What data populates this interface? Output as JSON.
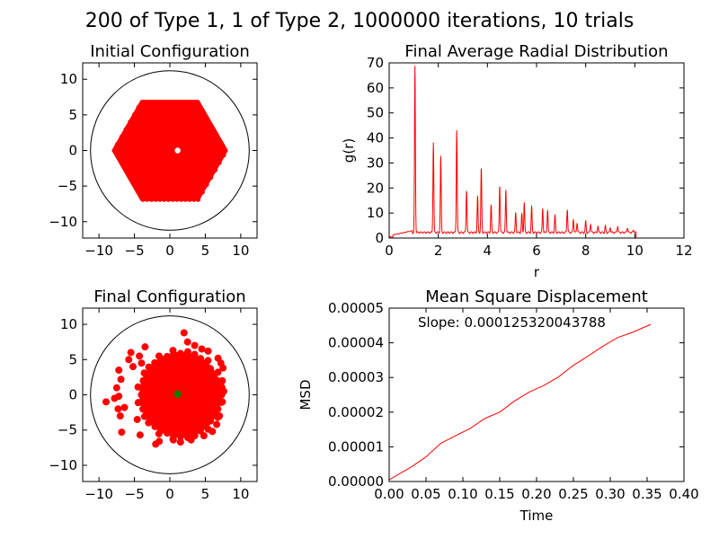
{
  "figure_title": "200 of Type 1, 1 of Type 2, 1000000 iterations, 10 trials",
  "colors": {
    "type1": "#ff0000",
    "type2": "#008000",
    "boundary": "#000000",
    "line": "#ff0000"
  },
  "chart_data": [
    {
      "id": "initial",
      "type": "scatter",
      "title": "Initial Configuration",
      "xlabel": "",
      "ylabel": "",
      "xlim": [
        -12.3,
        12.3
      ],
      "ylim": [
        -12.3,
        12.3
      ],
      "xticks": [
        -10,
        -5,
        0,
        5,
        10
      ],
      "yticks": [
        -10,
        -5,
        0,
        5,
        10
      ],
      "boundary_radius": 11.2,
      "series": [
        {
          "role": "type1",
          "color": "#ff0000",
          "shape": "hexagonal lattice",
          "count": 200,
          "hexagon_circumradius": 8.0
        },
        {
          "role": "type2",
          "color": "#ffffff",
          "points": [
            [
              1.1,
              0.0
            ]
          ]
        }
      ]
    },
    {
      "id": "rdf",
      "type": "line",
      "title": "Final Average Radial Distribution",
      "xlabel": "r",
      "ylabel": "g(r)",
      "xlim": [
        0,
        12
      ],
      "ylim": [
        0,
        70
      ],
      "xticks": [
        0,
        2,
        4,
        6,
        8,
        10,
        12
      ],
      "yticks": [
        0,
        10,
        20,
        30,
        40,
        50,
        60,
        70
      ],
      "color": "#ff0000",
      "peaks": [
        {
          "r": 1.05,
          "g": 68
        },
        {
          "r": 1.8,
          "g": 37.5
        },
        {
          "r": 2.1,
          "g": 32
        },
        {
          "r": 2.75,
          "g": 42.5
        },
        {
          "r": 3.15,
          "g": 18.5
        },
        {
          "r": 3.6,
          "g": 16
        },
        {
          "r": 3.75,
          "g": 27.5
        },
        {
          "r": 4.15,
          "g": 12.5
        },
        {
          "r": 4.5,
          "g": 20.5
        },
        {
          "r": 4.75,
          "g": 18.5
        },
        {
          "r": 5.15,
          "g": 9.5
        },
        {
          "r": 5.4,
          "g": 9
        },
        {
          "r": 5.5,
          "g": 13.5
        },
        {
          "r": 5.8,
          "g": 12
        },
        {
          "r": 6.25,
          "g": 11
        },
        {
          "r": 6.45,
          "g": 10.5
        },
        {
          "r": 6.75,
          "g": 8.5
        },
        {
          "r": 7.25,
          "g": 11
        },
        {
          "r": 7.5,
          "g": 7
        },
        {
          "r": 7.65,
          "g": 5.5
        },
        {
          "r": 8.0,
          "g": 6
        },
        {
          "r": 8.2,
          "g": 5
        },
        {
          "r": 8.5,
          "g": 4
        },
        {
          "r": 8.8,
          "g": 4
        },
        {
          "r": 9.0,
          "g": 3.5
        },
        {
          "r": 9.3,
          "g": 4
        },
        {
          "r": 9.7,
          "g": 3.5
        },
        {
          "r": 9.95,
          "g": 2.5
        }
      ],
      "r_end": 10.05
    },
    {
      "id": "final",
      "type": "scatter",
      "title": "Final Configuration",
      "xlabel": "",
      "ylabel": "",
      "xlim": [
        -12.3,
        12.3
      ],
      "ylim": [
        -12.3,
        12.3
      ],
      "xticks": [
        -10,
        -5,
        0,
        5,
        10
      ],
      "yticks": [
        -10,
        -5,
        0,
        5,
        10
      ],
      "boundary_radius": 11.2,
      "series": [
        {
          "role": "type1",
          "color": "#ff0000",
          "count": 200,
          "core_center": [
            1.5,
            0.0
          ],
          "core_radius": 5.8,
          "points": [
            [
              -9.0,
              -1.0
            ],
            [
              -7.8,
              -0.5
            ],
            [
              -7.2,
              3.5
            ],
            [
              -7.5,
              1.0
            ],
            [
              -7.3,
              -2.0
            ],
            [
              -7.0,
              -3.0
            ],
            [
              -6.8,
              -5.3
            ],
            [
              -6.4,
              -1.8
            ],
            [
              -5.5,
              6.0
            ],
            [
              -5.2,
              4.0
            ],
            [
              -4.3,
              5.5
            ],
            [
              -4.0,
              4.5
            ],
            [
              -4.6,
              -3.5
            ],
            [
              -4.2,
              -5.7
            ],
            [
              -3.5,
              6.8
            ],
            [
              -1.5,
              -6.6
            ],
            [
              0.5,
              -6.4
            ],
            [
              2.0,
              8.8
            ],
            [
              2.5,
              7.5
            ],
            [
              3.5,
              7.0
            ],
            [
              4.5,
              6.5
            ],
            [
              3.0,
              -6.4
            ],
            [
              4.8,
              -5.8
            ],
            [
              6.0,
              -5.2
            ],
            [
              6.8,
              5.2
            ],
            [
              7.2,
              4.5
            ],
            [
              7.5,
              3.8
            ],
            [
              7.4,
              2.0
            ],
            [
              7.6,
              0.5
            ],
            [
              7.4,
              -1.0
            ],
            [
              7.0,
              -3.0
            ],
            [
              6.6,
              -4.2
            ],
            [
              -2.0,
              -7.0
            ],
            [
              1.5,
              -6.7
            ],
            [
              -7.2,
              -0.2
            ],
            [
              -6.9,
              2.2
            ],
            [
              -5.8,
              5.0
            ],
            [
              5.4,
              6.2
            ]
          ]
        },
        {
          "role": "type2",
          "color": "#008000",
          "points": [
            [
              1.1,
              0.1
            ]
          ]
        }
      ]
    },
    {
      "id": "msd",
      "type": "line",
      "title": "Mean Square Displacement",
      "xlabel": "Time",
      "ylabel": "MSD",
      "xlim": [
        0,
        0.4
      ],
      "ylim": [
        0,
        5e-05
      ],
      "xticks": [
        "0.00",
        "0.05",
        "0.10",
        "0.15",
        "0.20",
        "0.25",
        "0.30",
        "0.35",
        "0.40"
      ],
      "xtick_values": [
        0,
        0.05,
        0.1,
        0.15,
        0.2,
        0.25,
        0.3,
        0.35,
        0.4
      ],
      "yticks": [
        "0.00000",
        "0.00001",
        "0.00002",
        "0.00003",
        "0.00004",
        "0.00005"
      ],
      "ytick_values": [
        0,
        1e-05,
        2e-05,
        3e-05,
        4e-05,
        5e-05
      ],
      "annotation": "Slope: 0.000125320043788",
      "color": "#ff0000",
      "x": [
        0.0,
        0.03,
        0.05,
        0.07,
        0.09,
        0.11,
        0.13,
        0.15,
        0.17,
        0.19,
        0.21,
        0.23,
        0.25,
        0.27,
        0.29,
        0.31,
        0.33,
        0.355
      ],
      "y": [
        5e-07,
        4.2e-06,
        7.1e-06,
        1.1e-05,
        1.32e-05,
        1.53e-05,
        1.82e-05,
        2e-05,
        2.32e-05,
        2.58e-05,
        2.77e-05,
        3.02e-05,
        3.35e-05,
        3.62e-05,
        3.9e-05,
        4.15e-05,
        4.3e-05,
        4.53e-05
      ]
    }
  ]
}
